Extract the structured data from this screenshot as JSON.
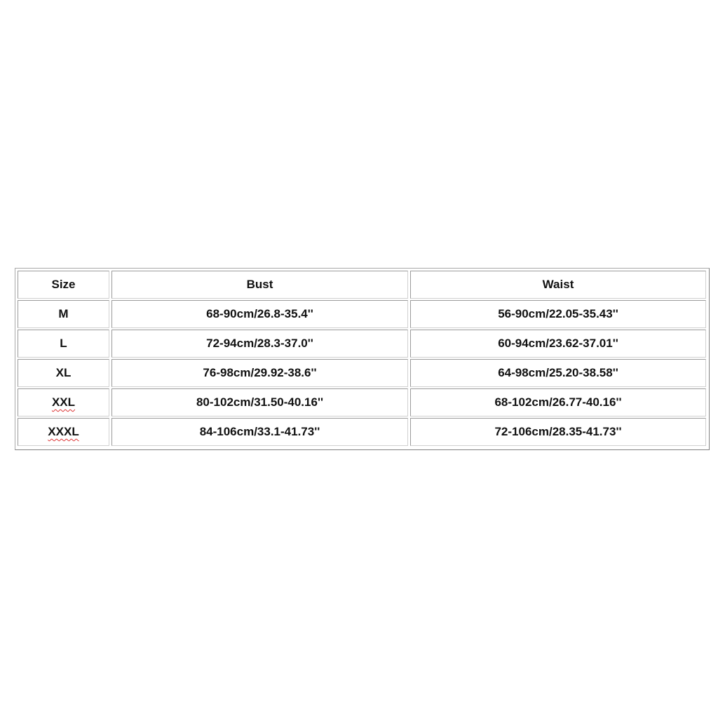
{
  "table": {
    "headers": [
      "Size",
      "Bust",
      "Waist"
    ],
    "rows": [
      {
        "size": "M",
        "bust": "68-90cm/26.8-35.4''",
        "waist": "56-90cm/22.05-35.43''"
      },
      {
        "size": "L",
        "bust": "72-94cm/28.3-37.0''",
        "waist": "60-94cm/23.62-37.01''"
      },
      {
        "size": "XL",
        "bust": "76-98cm/29.92-38.6''",
        "waist": "64-98cm/25.20-38.58''"
      },
      {
        "size": "XXL",
        "bust": "80-102cm/31.50-40.16''",
        "waist": "68-102cm/26.77-40.16''"
      },
      {
        "size": "XXXL",
        "bust": "84-106cm/33.1-41.73''",
        "waist": "72-106cm/28.35-41.73''"
      }
    ]
  }
}
